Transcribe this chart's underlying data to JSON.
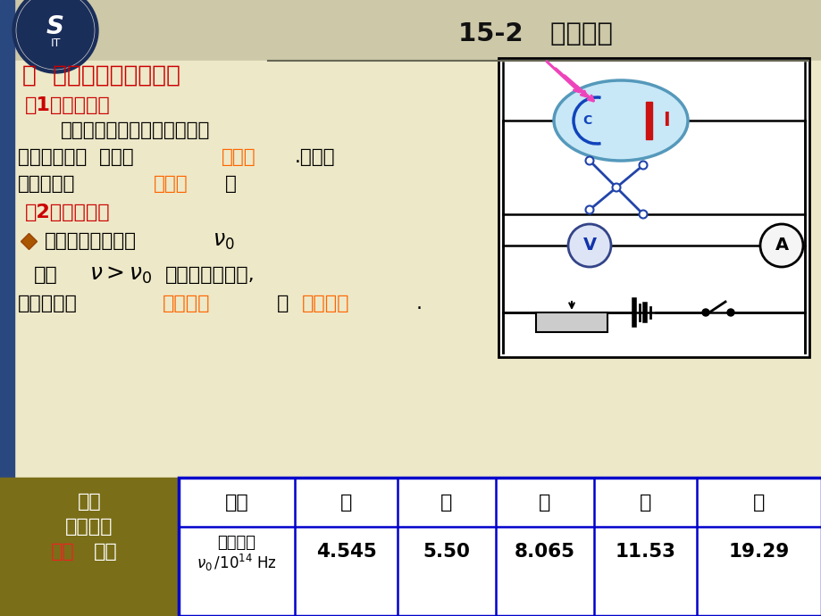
{
  "title": "15-2   光电效应",
  "bg_main": "#ede8c8",
  "bg_top": "#ccc8a8",
  "sidebar_color": "#2a4880",
  "highlight_orange": "#ff6600",
  "highlight_red": "#cc0000",
  "table_gold": "#7a6e18",
  "table_border": "#0000cc",
  "circuit_box_color": "#e8e8e8",
  "table_header_row": [
    "金属",
    "铯",
    "钠",
    "锌",
    "铁",
    "铂"
  ],
  "table_values": [
    "4.545",
    "5.50",
    "8.065",
    "11.53",
    "19.29"
  ]
}
